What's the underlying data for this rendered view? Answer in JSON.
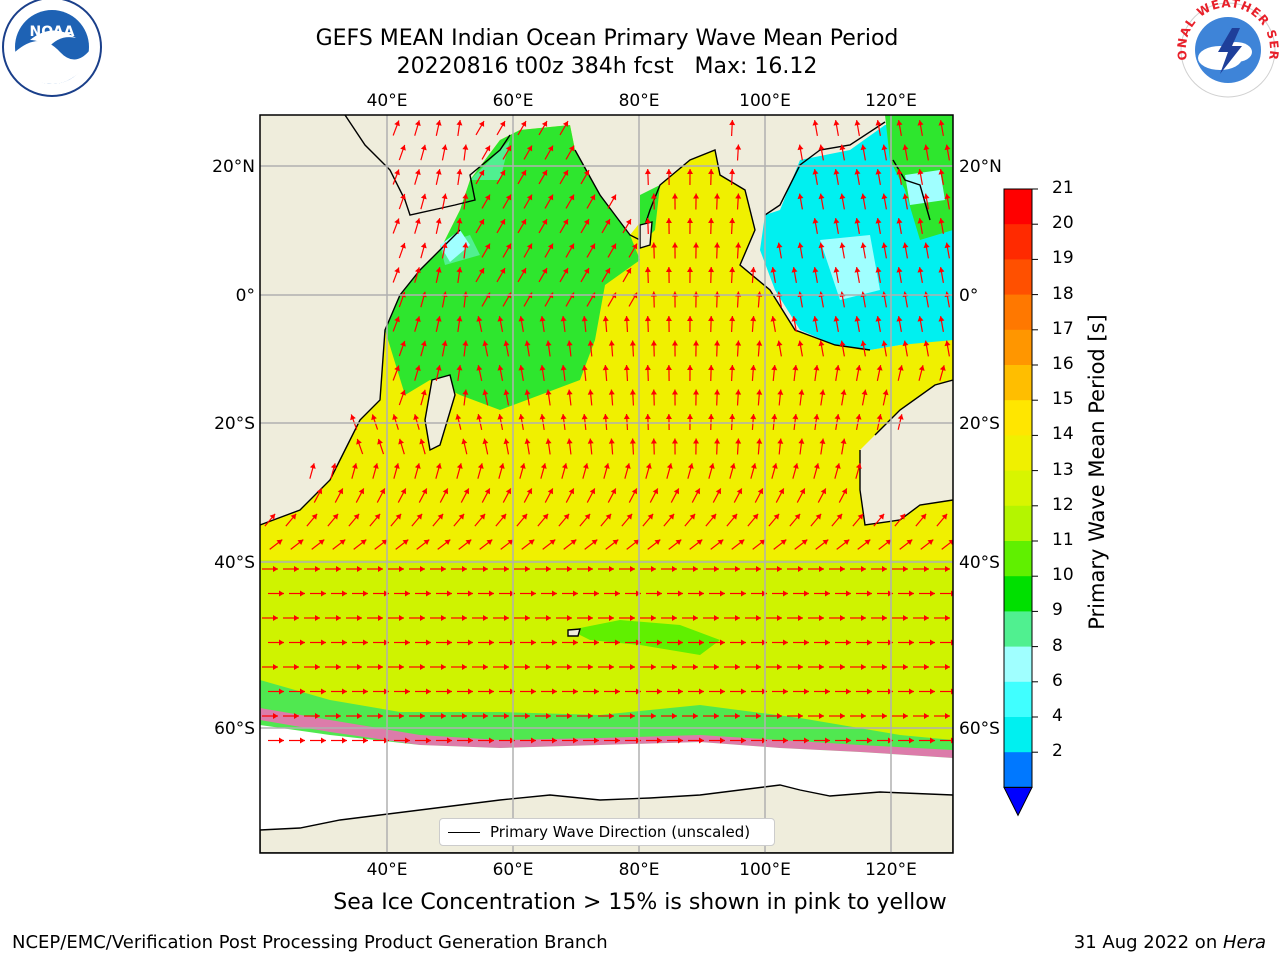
{
  "title_line1": "GEFS MEAN Indian Ocean Primary Wave Mean Period",
  "title_line2": "20220816 t00z 384h fcst   Max: 16.12",
  "lon_labels": [
    "40°E",
    "60°E",
    "80°E",
    "100°E",
    "120°E"
  ],
  "lat_labels_left": [
    "20°N",
    "0°",
    "20°S",
    "40°S",
    "60°S"
  ],
  "lat_labels_right": [
    "20°N",
    "0°",
    "20°S",
    "40°S",
    "60°S"
  ],
  "legend_label": "Primary Wave Direction (unscaled)",
  "colorbar": {
    "label": "Primary Wave Mean Period [s]",
    "ticks": [
      "21",
      "20",
      "19",
      "18",
      "17",
      "16",
      "15",
      "14",
      "13",
      "12",
      "11",
      "10",
      "9",
      "8",
      "6",
      "4",
      "2"
    ],
    "colors": [
      "#ff0000",
      "#ff2a00",
      "#ff5000",
      "#ff7800",
      "#ff9600",
      "#ffbe00",
      "#ffe600",
      "#f0f000",
      "#d8f500",
      "#b4f500",
      "#60f000",
      "#00e000",
      "#50f090",
      "#a0ffff",
      "#40ffff",
      "#00f0f0",
      "#0078ff"
    ],
    "extend_color": "#0000ff"
  },
  "bottom_note": "Sea Ice Concentration > 15% is shown in pink to yellow",
  "credit_left": "NCEP/EMC/Verification Post Processing Product Generation Branch",
  "credit_date": "31 Aug 2022 on ",
  "credit_host": "Hera",
  "logos": {
    "left": "NOAA",
    "right": "NATIONAL WEATHER SERVICE"
  },
  "map": {
    "lon_range": [
      20,
      130
    ],
    "lat_range": [
      -85,
      28
    ],
    "arrow_color": "#ff0000",
    "land_color": "#efeddc"
  }
}
